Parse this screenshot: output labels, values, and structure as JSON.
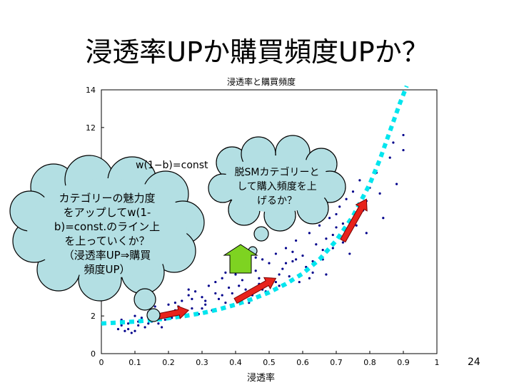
{
  "slide": {
    "title": "浸透率UPか購買頻度UPか？",
    "page_number": "24"
  },
  "bubbles": {
    "left_lines": [
      "カテゴリーの魅力度",
      "をアップしてw(1-",
      "b)=const.のライン上",
      "を上っていくか？",
      "（浸透率UP⇒購買",
      "頻度UP）"
    ],
    "right_lines": [
      "脱SMカテゴリーと",
      "して購入頻度を上",
      "げるか？"
    ]
  },
  "colors": {
    "points": "#00008b",
    "curve": "#00e5ee",
    "arrow": "#e8231b",
    "bubble_fill": "#b3dfe3",
    "up_arrow": "#7ed321"
  },
  "chart_data": {
    "type": "scatter",
    "title": "浸透率と購買頻度",
    "xlabel": "浸透率",
    "ylabel": "",
    "xlim": [
      0,
      1
    ],
    "ylim": [
      0,
      14
    ],
    "xticks": [
      "0",
      "0.1",
      "0.2",
      "0.3",
      "0.4",
      "0.5",
      "0.6",
      "0.7",
      "0.8",
      "0.9",
      "1"
    ],
    "yticks": [
      "0",
      "2",
      "4",
      "6",
      "8",
      "10",
      "12",
      "14"
    ],
    "annotation": "w(1−b)=const",
    "curve": {
      "x": [
        0.0,
        0.05,
        0.1,
        0.15,
        0.2,
        0.25,
        0.3,
        0.35,
        0.4,
        0.45,
        0.5,
        0.55,
        0.6,
        0.65,
        0.7,
        0.75,
        0.8,
        0.83,
        0.86,
        0.89,
        0.91
      ],
      "y": [
        1.6,
        1.65,
        1.7,
        1.78,
        1.88,
        2.0,
        2.15,
        2.35,
        2.6,
        2.9,
        3.25,
        3.7,
        4.25,
        5.0,
        6.0,
        7.3,
        9.0,
        10.3,
        11.8,
        13.3,
        14.2
      ]
    },
    "series": [
      {
        "x": [
          0.05,
          0.06,
          0.07,
          0.08,
          0.09,
          0.1,
          0.11,
          0.12,
          0.13,
          0.14,
          0.15,
          0.16,
          0.17,
          0.18,
          0.19,
          0.2,
          0.21,
          0.22,
          0.23,
          0.24,
          0.25,
          0.26,
          0.27,
          0.28,
          0.29,
          0.3,
          0.31,
          0.32,
          0.33,
          0.34,
          0.35,
          0.36,
          0.37,
          0.38,
          0.39,
          0.4,
          0.41,
          0.42,
          0.43,
          0.44,
          0.45,
          0.46,
          0.47,
          0.48,
          0.49,
          0.5,
          0.51,
          0.52,
          0.53,
          0.54,
          0.55,
          0.56,
          0.57,
          0.58,
          0.59,
          0.6,
          0.61,
          0.62,
          0.63,
          0.64,
          0.65,
          0.66,
          0.67,
          0.68,
          0.69,
          0.7,
          0.71,
          0.72,
          0.73,
          0.74,
          0.75,
          0.76,
          0.77,
          0.78,
          0.79,
          0.8,
          0.82,
          0.84,
          0.86,
          0.88,
          0.9,
          0.06,
          0.08,
          0.11,
          0.13,
          0.16,
          0.18,
          0.22,
          0.27,
          0.31,
          0.34,
          0.37,
          0.41,
          0.44,
          0.47,
          0.52,
          0.55,
          0.58,
          0.62,
          0.66,
          0.69,
          0.72,
          0.78,
          0.83,
          0.87,
          0.9,
          0.1,
          0.14,
          0.17,
          0.23,
          0.26,
          0.3,
          0.36,
          0.39,
          0.43,
          0.46,
          0.48,
          0.53,
          0.57,
          0.63,
          0.67,
          0.7,
          0.74,
          0.79
        ],
        "y": [
          1.3,
          1.8,
          1.2,
          1.6,
          1.1,
          2.0,
          1.5,
          1.9,
          1.4,
          2.2,
          1.7,
          2.5,
          1.6,
          2.1,
          1.8,
          2.6,
          1.9,
          2.3,
          2.0,
          2.8,
          2.2,
          3.1,
          2.4,
          3.3,
          2.1,
          3.0,
          2.6,
          3.6,
          2.3,
          3.8,
          2.9,
          4.0,
          2.7,
          3.5,
          3.2,
          4.2,
          2.9,
          3.9,
          3.4,
          4.6,
          3.1,
          4.4,
          3.7,
          5.0,
          3.3,
          4.8,
          3.9,
          5.3,
          3.6,
          4.5,
          5.6,
          4.1,
          4.9,
          6.0,
          3.8,
          5.2,
          4.6,
          6.4,
          4.3,
          5.8,
          6.8,
          5.0,
          6.1,
          7.2,
          5.6,
          6.7,
          7.8,
          5.9,
          8.2,
          7.0,
          8.6,
          6.8,
          9.2,
          7.6,
          6.4,
          8.8,
          9.6,
          7.2,
          10.4,
          9.0,
          10.8,
          1.5,
          1.3,
          1.7,
          2.4,
          1.9,
          1.4,
          2.7,
          2.9,
          2.8,
          3.2,
          4.3,
          3.6,
          2.7,
          4.0,
          3.8,
          4.8,
          5.0,
          4.0,
          5.5,
          6.3,
          6.9,
          7.9,
          8.5,
          11.2,
          11.6,
          1.2,
          1.6,
          2.2,
          2.5,
          3.4,
          2.4,
          3.1,
          4.4,
          3.0,
          5.1,
          3.4,
          4.2,
          5.4,
          4.9,
          4.2,
          7.4,
          5.3,
          8.1
        ]
      }
    ],
    "arrows": [
      {
        "from": [
          0.15,
          1.9
        ],
        "to": [
          0.26,
          2.3
        ]
      },
      {
        "from": [
          0.4,
          2.8
        ],
        "to": [
          0.52,
          4.0
        ]
      },
      {
        "from": [
          0.72,
          6.0
        ],
        "to": [
          0.79,
          8.2
        ]
      }
    ]
  }
}
